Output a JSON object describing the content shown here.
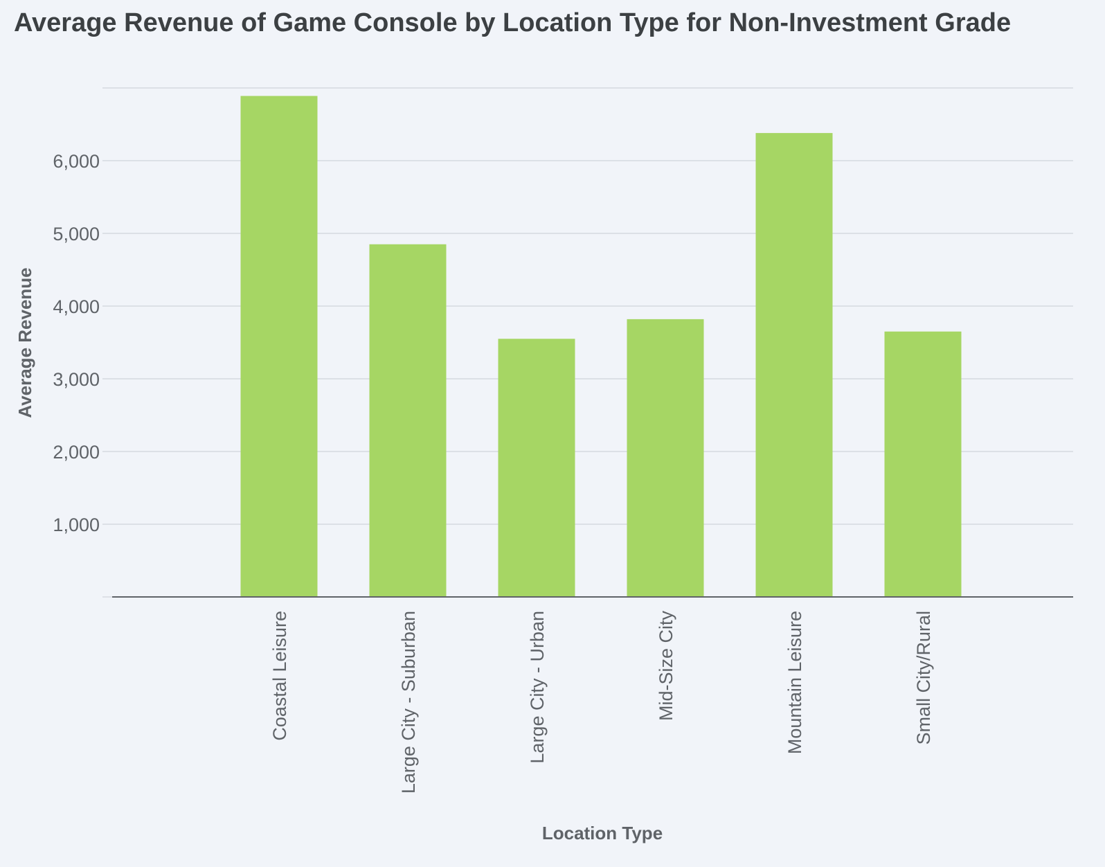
{
  "chart_data": {
    "type": "bar",
    "title": "Average Revenue of Game Console by Location Type for Non-Investment Grade",
    "xlabel": "Location Type",
    "ylabel": "Average Revenue",
    "categories": [
      "Coastal Leisure",
      "Large City - Suburban",
      "Large City - Urban",
      "Mid-Size City",
      "Mountain Leisure",
      "Small City/Rural"
    ],
    "values": [
      6890,
      4850,
      3550,
      3820,
      6380,
      3650
    ],
    "yticks": [
      "1,000",
      "2,000",
      "3,000",
      "4,000",
      "5,000",
      "6,000"
    ],
    "ytick_values": [
      1000,
      2000,
      3000,
      4000,
      5000,
      6000
    ],
    "ylim": [
      0,
      7000
    ],
    "grid": true,
    "bar_color": "#a6d664"
  }
}
